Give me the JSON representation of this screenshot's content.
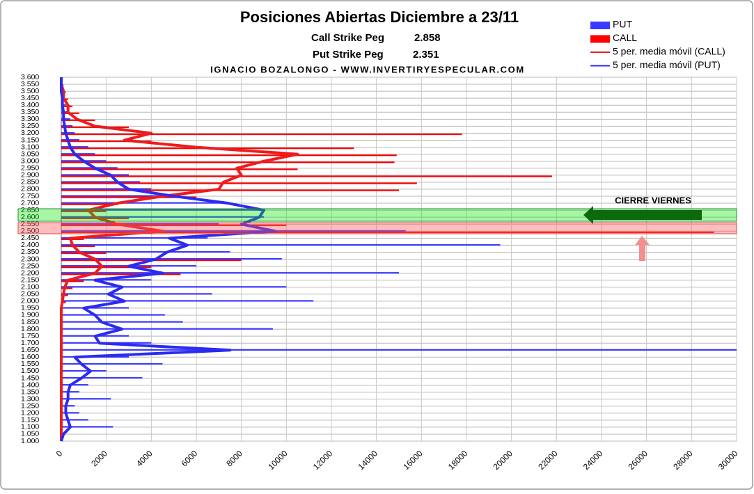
{
  "chart_data": {
    "type": "bar",
    "orientation": "horizontal",
    "title": "Posiciones Abiertas Diciembre a 23/11",
    "pegs": [
      {
        "label": "Call Strike Peg",
        "value": 2.858
      },
      {
        "label": "Put Strike Peg",
        "value": 2.351
      }
    ],
    "author": "IGNACIO BOZALONGO - WWW.INVERTIRYESPECULAR.COM",
    "annotation": "CIERRE VIERNES",
    "categories": [
      "1.000",
      "1.050",
      "1.100",
      "1.150",
      "1.200",
      "1.250",
      "1.300",
      "1.350",
      "1.400",
      "1.450",
      "1.500",
      "1.550",
      "1.600",
      "1.650",
      "1.700",
      "1.750",
      "1.800",
      "1.850",
      "1.900",
      "1.950",
      "2.000",
      "2.050",
      "2.100",
      "2.150",
      "2.200",
      "2.250",
      "2.300",
      "2.350",
      "2.400",
      "2.450",
      "2.500",
      "2.550",
      "2.600",
      "2.650",
      "2.700",
      "2.750",
      "2.800",
      "2.850",
      "2.900",
      "2.950",
      "3.000",
      "3.050",
      "3.100",
      "3.150",
      "3.200",
      "3.250",
      "3.300",
      "3.350",
      "3.400",
      "3.450",
      "3.500",
      "3.550",
      "3.600"
    ],
    "series": [
      {
        "name": "PUT",
        "type": "bar",
        "color": "#3a3aff",
        "values": [
          0,
          100,
          2300,
          1200,
          800,
          600,
          2200,
          800,
          1200,
          3600,
          2000,
          4500,
          3000,
          30000,
          4000,
          3000,
          9400,
          5400,
          4600,
          3000,
          11200,
          6700,
          10000,
          4000,
          15000,
          6000,
          9800,
          7500,
          19500,
          6500,
          15300,
          7000,
          9000,
          9000,
          7500,
          5000,
          4000,
          3500,
          3000,
          2500,
          2000,
          1500,
          1200,
          800,
          600,
          500,
          400,
          300,
          200,
          100,
          100,
          50,
          0
        ]
      },
      {
        "name": "CALL",
        "type": "bar",
        "color": "#ff0000",
        "values": [
          0,
          0,
          0,
          0,
          0,
          0,
          0,
          0,
          0,
          0,
          0,
          0,
          0,
          0,
          0,
          0,
          0,
          0,
          0,
          0,
          200,
          300,
          500,
          1000,
          5300,
          4000,
          8000,
          2000,
          1500,
          1000,
          29000,
          10000,
          3000,
          2000,
          2500,
          6000,
          15000,
          15800,
          21800,
          10500,
          14800,
          14900,
          13000,
          4000,
          17800,
          3000,
          1500,
          800,
          500,
          300,
          200,
          100,
          50
        ]
      },
      {
        "name": "5 per. media móvil (CALL)",
        "type": "line",
        "color": "#ee1c1c",
        "values": [
          0,
          0,
          0,
          0,
          0,
          0,
          0,
          0,
          0,
          0,
          0,
          0,
          0,
          0,
          0,
          0,
          0,
          0,
          0,
          0,
          50,
          100,
          150,
          300,
          1500,
          1800,
          1500,
          800,
          500,
          400,
          4500,
          2500,
          1500,
          1200,
          2500,
          4500,
          7000,
          7200,
          8000,
          7800,
          9000,
          10500,
          6000,
          2800,
          4000,
          1500,
          700,
          300,
          300,
          100,
          100,
          0,
          0
        ]
      },
      {
        "name": "5 per. media móvil (PUT)",
        "type": "line",
        "color": "#2b2bf0",
        "values": [
          0,
          100,
          400,
          300,
          200,
          200,
          300,
          300,
          400,
          900,
          1300,
          900,
          600,
          7500,
          1700,
          1500,
          2700,
          1800,
          1500,
          1000,
          2800,
          2100,
          2700,
          1500,
          4500,
          3000,
          4200,
          4700,
          5600,
          4800,
          9500,
          8000,
          8800,
          9000,
          7400,
          5000,
          3000,
          2500,
          2200,
          1500,
          1000,
          600,
          400,
          300,
          200,
          150,
          100,
          100,
          50,
          50,
          0,
          0,
          0
        ]
      }
    ],
    "xlim": [
      0,
      30000
    ],
    "xticks": [
      0,
      2000,
      4000,
      6000,
      8000,
      10000,
      12000,
      14000,
      16000,
      18000,
      20000,
      22000,
      24000,
      26000,
      28000,
      30000
    ],
    "grid": true,
    "legend": "top-right"
  }
}
